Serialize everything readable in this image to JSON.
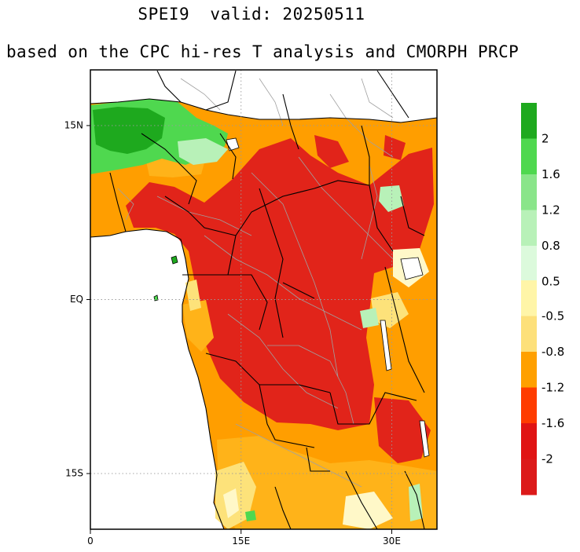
{
  "title": {
    "line1": "SPEI9  valid: 20250511",
    "line2": "based on the CPC hi-res T analysis and CMORPH PRCP"
  },
  "axes": {
    "lat_labels": [
      {
        "text": "15N",
        "lat": 15
      },
      {
        "text": "EQ",
        "lat": 0
      },
      {
        "text": "15S",
        "lat": -15
      }
    ],
    "lon_labels": [
      {
        "text": "0",
        "lon": 0
      },
      {
        "text": "15E",
        "lon": 15
      },
      {
        "text": "30E",
        "lon": 30
      }
    ],
    "lon_range": [
      0,
      34.5
    ],
    "lat_range": [
      -19.8,
      19.8
    ]
  },
  "legend": {
    "wet": [
      {
        "color": "#1ea91e",
        "label": "2"
      },
      {
        "color": "#4fd84f",
        "label": "1.6"
      },
      {
        "color": "#8ae58a",
        "label": "1.2"
      },
      {
        "color": "#b8f1b8",
        "label": "0.8"
      },
      {
        "color": "#dcfadc",
        "label": "0.5"
      },
      {
        "color": "#eefcee",
        "label": ""
      }
    ],
    "dry": [
      {
        "color": "#fff5a8",
        "label": "-0.5"
      },
      {
        "color": "#fde07a",
        "label": "-0.8"
      },
      {
        "color": "#ffa000",
        "label": "-1.2"
      },
      {
        "color": "#ff3c00",
        "label": "-1.6"
      },
      {
        "color": "#e01414",
        "label": "-2"
      },
      {
        "color": "#dc1a1a",
        "label": ""
      }
    ]
  },
  "colors": {
    "land_base": "#ff9e00",
    "drought_core": "#e1241a",
    "severe": "#f03c0a",
    "moderate": "#ffb319",
    "mild": "#fde27a",
    "near_normal": "#fff8c8",
    "wet_strong": "#1ea91e",
    "wet_mid": "#4fd84f",
    "wet_light": "#b8f1b8",
    "ocean": "#ffffff",
    "border": "#000000",
    "admin": "#a0a0a0",
    "grid": "#9a9a9a"
  }
}
